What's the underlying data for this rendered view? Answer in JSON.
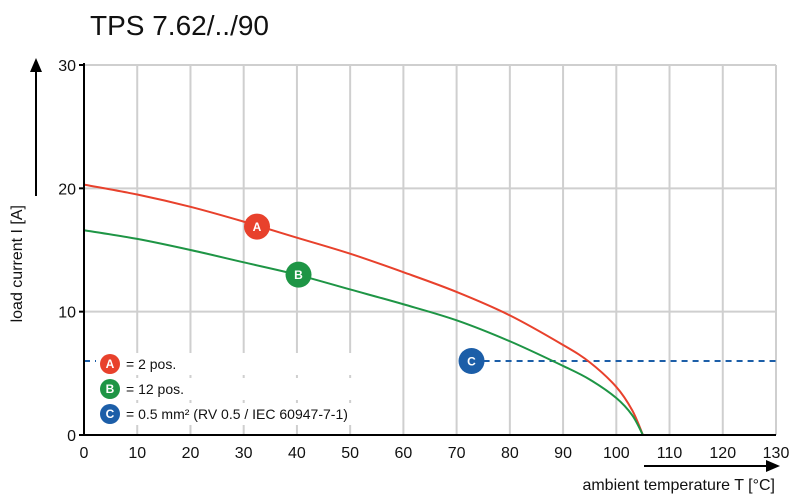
{
  "chart_data": {
    "type": "line",
    "title": "TPS 7.62/../90",
    "xlabel": "ambient temperature T [°C]",
    "ylabel": "load current I [A]",
    "xlim": [
      0,
      130
    ],
    "ylim": [
      0,
      30
    ],
    "x_ticks": [
      0,
      10,
      20,
      30,
      40,
      50,
      60,
      70,
      80,
      90,
      100,
      110,
      120,
      130
    ],
    "y_ticks": [
      0,
      10,
      20,
      30
    ],
    "grid": true,
    "series": [
      {
        "name": "A",
        "label": "= 2 pos.",
        "color": "#e8412c",
        "x": [
          0,
          10,
          20,
          30,
          40,
          50,
          60,
          70,
          80,
          90,
          95,
          100,
          103,
          105
        ],
        "y": [
          20.3,
          19.5,
          18.5,
          17.3,
          16.0,
          14.7,
          13.2,
          11.6,
          9.7,
          7.3,
          5.9,
          3.9,
          2.0,
          0
        ]
      },
      {
        "name": "B",
        "label": "= 12 pos.",
        "color": "#1e9545",
        "x": [
          0,
          10,
          20,
          30,
          40,
          50,
          60,
          70,
          80,
          90,
          95,
          100,
          103,
          105
        ],
        "y": [
          16.6,
          15.9,
          15.0,
          14.0,
          13.0,
          11.8,
          10.6,
          9.3,
          7.6,
          5.6,
          4.5,
          3.0,
          1.6,
          0
        ]
      }
    ],
    "reference_line": {
      "name": "C",
      "label": "= 0.5 mm² (RV 0.5 / IEC 60947-7-1)",
      "color": "#1c5ea8",
      "y": 6,
      "x_from": 73,
      "x_to": 130,
      "style": "dashed"
    },
    "markers": [
      {
        "name": "A",
        "x": 32.5,
        "y": 16.9,
        "color": "#e8412c"
      },
      {
        "name": "B",
        "x": 40.3,
        "y": 13.0,
        "color": "#1e9545"
      },
      {
        "name": "C",
        "x": 72.8,
        "y": 6.0,
        "color": "#1c5ea8"
      }
    ],
    "legend_location": "bottom-left"
  }
}
